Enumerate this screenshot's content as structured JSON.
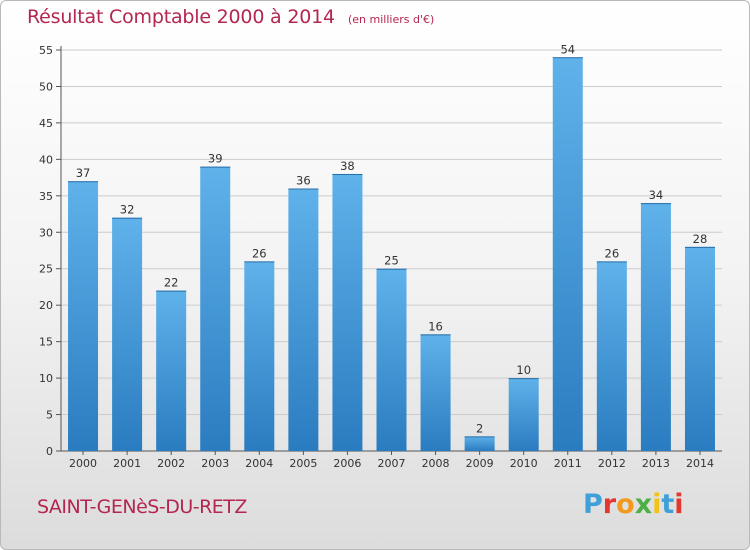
{
  "header": {
    "title": "Résultat Comptable 2000 à 2014",
    "subtitle": "(en milliers d'€)"
  },
  "footer": {
    "commune": "SAINT-GENèS-DU-RETZ",
    "logo_letters": [
      "P",
      "r",
      "o",
      "x",
      "i",
      "t",
      "i"
    ],
    "logo_colors": [
      "#3fa0d9",
      "#e2382f",
      "#f29a1f",
      "#4daf45",
      "#f2c21a",
      "#3fa0d9",
      "#e2382f"
    ]
  },
  "colors": {
    "title": "#b4264f",
    "bar_light": "#5fb2ea",
    "bar_dark": "#2a7cc0",
    "grid": "#cccccc"
  },
  "chart_data": {
    "type": "bar",
    "title": "Résultat Comptable 2000 à 2014",
    "subtitle": "(en milliers d'€)",
    "categories": [
      "2000",
      "2001",
      "2002",
      "2003",
      "2004",
      "2005",
      "2006",
      "2007",
      "2008",
      "2009",
      "2010",
      "2011",
      "2012",
      "2013",
      "2014"
    ],
    "values": [
      37,
      32,
      22,
      39,
      26,
      36,
      38,
      25,
      16,
      2,
      10,
      54,
      26,
      34,
      28
    ],
    "ylim": [
      0,
      55
    ],
    "yticks": [
      "0",
      "5",
      "10",
      "15",
      "20",
      "25",
      "30",
      "35",
      "40",
      "45",
      "50",
      "55"
    ],
    "grid": true,
    "xlabel": "",
    "ylabel": ""
  }
}
